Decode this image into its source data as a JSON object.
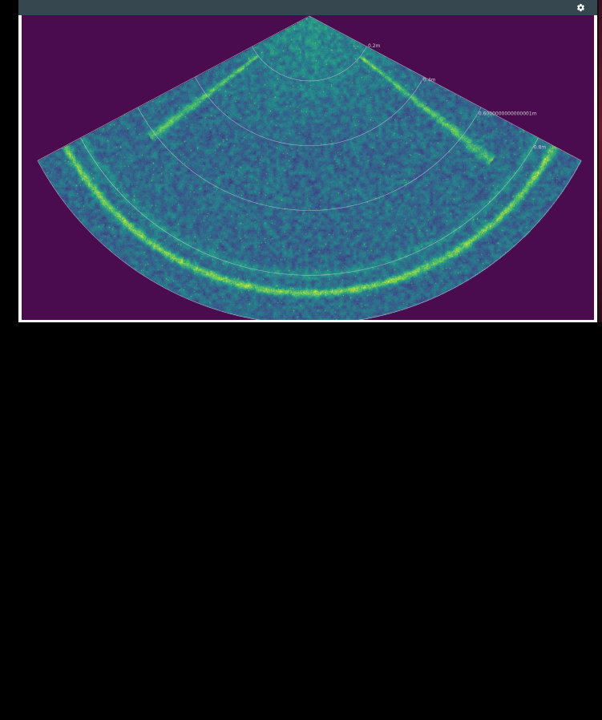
{
  "toolbar": {
    "settings_icon": "gear-icon",
    "background_color": "#37474f"
  },
  "plot": {
    "background_color": "#4a0c4e",
    "colormap": "viridis",
    "range_labels": [
      "0.2m",
      "0.4m",
      "0.6000000000000001m",
      "0.8m"
    ],
    "range_values_m": [
      0.2,
      0.4,
      0.6000000000000001,
      0.8
    ],
    "max_range_m": 0.95
  }
}
